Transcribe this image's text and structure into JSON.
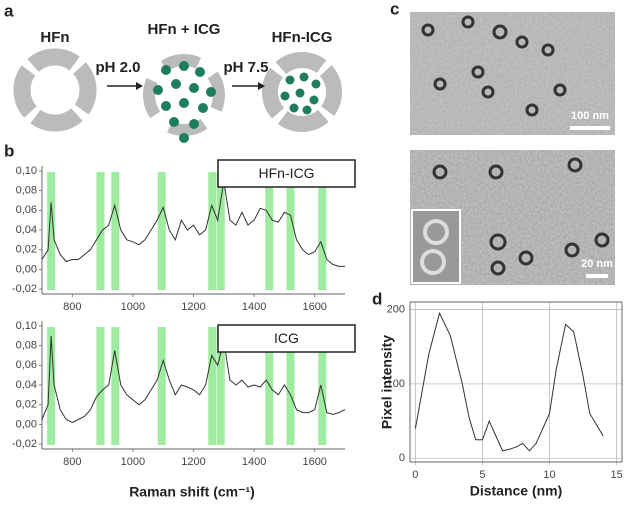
{
  "panels": [
    "a",
    "b",
    "c",
    "d"
  ],
  "diagram": {
    "labels": [
      "HFn",
      "HFn + ICG",
      "HFn-ICG"
    ],
    "steps": [
      "pH 2.0",
      "pH 7.5"
    ]
  },
  "micrographs": {
    "scale_bars": [
      "100 nm",
      "20 nm"
    ]
  },
  "chart_data": [
    {
      "type": "line",
      "x": [
        700,
        720,
        730,
        740,
        760,
        780,
        800,
        820,
        840,
        860,
        880,
        900,
        920,
        940,
        960,
        980,
        1000,
        1020,
        1040,
        1060,
        1080,
        1100,
        1120,
        1140,
        1160,
        1180,
        1200,
        1220,
        1240,
        1260,
        1280,
        1300,
        1320,
        1340,
        1360,
        1380,
        1400,
        1420,
        1440,
        1460,
        1480,
        1500,
        1520,
        1540,
        1560,
        1580,
        1600,
        1620,
        1640,
        1660,
        1680,
        1700
      ],
      "series": [
        {
          "name": "HFn-ICG",
          "color": "#333333",
          "values": [
            0.01,
            0.02,
            0.068,
            0.03,
            0.015,
            0.008,
            0.01,
            0.01,
            0.015,
            0.02,
            0.03,
            0.04,
            0.045,
            0.065,
            0.04,
            0.03,
            0.028,
            0.025,
            0.03,
            0.04,
            0.05,
            0.063,
            0.04,
            0.03,
            0.05,
            0.04,
            0.045,
            0.035,
            0.04,
            0.065,
            0.05,
            0.09,
            0.05,
            0.045,
            0.058,
            0.045,
            0.05,
            0.062,
            0.06,
            0.05,
            0.048,
            0.058,
            0.055,
            0.03,
            0.02,
            0.015,
            0.018,
            0.028,
            0.01,
            0.005,
            0.003,
            0.003
          ]
        }
      ],
      "highlights": [
        730,
        893,
        942,
        1095,
        1262,
        1290,
        1450,
        1520,
        1625
      ],
      "xlim": [
        700,
        1700
      ],
      "xticks": [
        800,
        1000,
        1200,
        1400,
        1600
      ],
      "ylim": [
        -0.025,
        0.105
      ],
      "yticks": [
        {
          "value": -0.02,
          "label": "-0,02"
        },
        {
          "value": 0,
          "label": "0,00"
        },
        {
          "value": 0.02,
          "label": "0,02"
        },
        {
          "value": 0.04,
          "label": "0,04"
        },
        {
          "value": 0.06,
          "label": "0,06"
        },
        {
          "value": 0.08,
          "label": "0,08"
        },
        {
          "value": 0.1,
          "label": "0,10"
        }
      ],
      "highlight_color": "#8ee88e"
    },
    {
      "type": "line",
      "x": [
        700,
        720,
        730,
        740,
        760,
        780,
        800,
        820,
        840,
        860,
        880,
        900,
        920,
        940,
        960,
        980,
        1000,
        1020,
        1040,
        1060,
        1080,
        1100,
        1120,
        1140,
        1160,
        1180,
        1200,
        1220,
        1240,
        1260,
        1280,
        1300,
        1320,
        1340,
        1360,
        1380,
        1400,
        1420,
        1440,
        1460,
        1480,
        1500,
        1520,
        1540,
        1560,
        1580,
        1600,
        1620,
        1640,
        1660,
        1680,
        1700
      ],
      "series": [
        {
          "name": "ICG",
          "color": "#333333",
          "values": [
            0.005,
            0.02,
            0.09,
            0.04,
            0.015,
            0.005,
            0.002,
            0.005,
            0.008,
            0.015,
            0.028,
            0.035,
            0.04,
            0.075,
            0.04,
            0.03,
            0.025,
            0.02,
            0.025,
            0.035,
            0.045,
            0.065,
            0.045,
            0.03,
            0.04,
            0.038,
            0.035,
            0.03,
            0.04,
            0.07,
            0.06,
            0.085,
            0.045,
            0.04,
            0.045,
            0.038,
            0.04,
            0.038,
            0.045,
            0.035,
            0.03,
            0.04,
            0.03,
            0.015,
            0.012,
            0.012,
            0.015,
            0.04,
            0.012,
            0.01,
            0.012,
            0.015
          ]
        }
      ],
      "highlights": [
        730,
        893,
        942,
        1095,
        1262,
        1290,
        1450,
        1520,
        1625
      ],
      "xlim": [
        700,
        1700
      ],
      "xticks": [
        800,
        1000,
        1200,
        1400,
        1600
      ],
      "xlabel": "Raman shift (cm⁻¹)",
      "ylim": [
        -0.025,
        0.105
      ],
      "yticks": [
        {
          "value": -0.02,
          "label": "-0,02"
        },
        {
          "value": 0,
          "label": "0,00"
        },
        {
          "value": 0.02,
          "label": "0,02"
        },
        {
          "value": 0.04,
          "label": "0,04"
        },
        {
          "value": 0.06,
          "label": "0,06"
        },
        {
          "value": 0.08,
          "label": "0,08"
        },
        {
          "value": 0.1,
          "label": "0,10"
        }
      ],
      "highlight_color": "#8ee88e"
    },
    {
      "type": "line",
      "x": [
        0,
        1,
        1.8,
        2.6,
        3.5,
        4,
        4.5,
        5,
        5.5,
        6,
        6.5,
        7,
        7.5,
        8,
        8.5,
        9,
        10,
        10.5,
        11.2,
        11.8,
        12.5,
        13,
        13.5,
        14
      ],
      "series": [
        {
          "color": "#333333",
          "values": [
            40,
            140,
            195,
            165,
            100,
            55,
            25,
            25,
            50,
            30,
            10,
            12,
            15,
            20,
            10,
            20,
            60,
            120,
            180,
            170,
            110,
            60,
            45,
            30
          ]
        }
      ],
      "xlim": [
        -0.4,
        15.4
      ],
      "xticks": [
        0,
        5,
        10,
        15
      ],
      "xlabel": "Distance (nm)",
      "ylim": [
        -5,
        210
      ],
      "yticks": [
        0,
        100,
        200
      ],
      "ylabel": "Pixel intensity",
      "grid": true
    }
  ]
}
